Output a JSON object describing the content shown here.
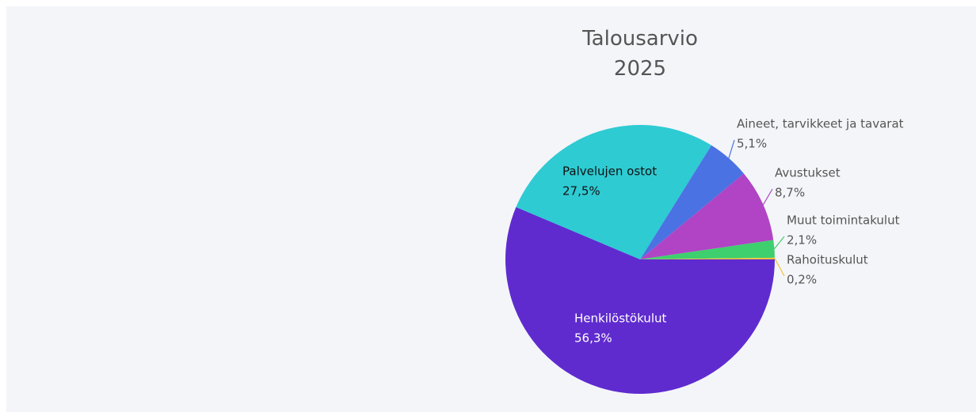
{
  "chart_data": {
    "type": "pie",
    "title": "Talousarvio 2025",
    "categories": [
      "Henkilöstökulut",
      "Palvelujen ostot",
      "Aineet, tarvikkeet ja tavarat",
      "Avustukset",
      "Muut toimintakulut",
      "Rahoituskulut"
    ],
    "values": [
      56.3,
      27.5,
      5.1,
      8.7,
      2.1,
      0.2
    ],
    "value_labels": [
      "56,3%",
      "27,5%",
      "5,1%",
      "8,7%",
      "2,1%",
      "0,2%"
    ],
    "colors": [
      "#5f2bcf",
      "#2ecbd3",
      "#4a72e3",
      "#b044c4",
      "#3ecf6e",
      "#f2c23a"
    ]
  }
}
